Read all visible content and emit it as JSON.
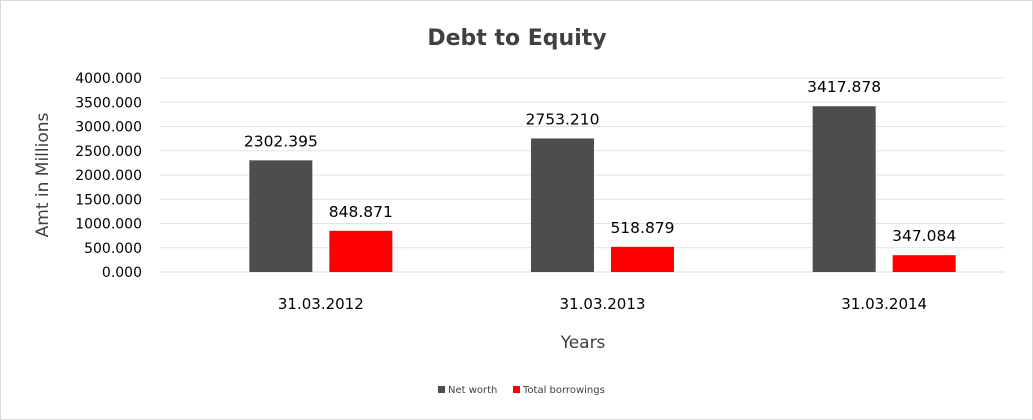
{
  "chart_data": {
    "type": "bar",
    "title": "Debt to Equity",
    "xlabel": "Years",
    "ylabel": "Amt in Millions",
    "categories": [
      "31.03.2012",
      "31.03.2013",
      "31.03.2014"
    ],
    "series": [
      {
        "name": "Net worth",
        "values": [
          2302.395,
          2753.21,
          3417.878
        ],
        "labels": [
          "2302.395",
          "2753.210",
          "3417.878"
        ],
        "color": "#4d4d4d"
      },
      {
        "name": "Total borrowings",
        "values": [
          848.871,
          518.879,
          347.084
        ],
        "labels": [
          "848.871",
          "518.879",
          "347.084"
        ],
        "color": "#ff0000"
      }
    ],
    "ylim": [
      0,
      4000
    ],
    "yticks": [
      "0.000",
      "500.000",
      "1000.000",
      "1500.000",
      "2000.000",
      "2500.000",
      "3000.000",
      "3500.000",
      "4000.000"
    ],
    "grid": true,
    "legend_position": "bottom"
  }
}
